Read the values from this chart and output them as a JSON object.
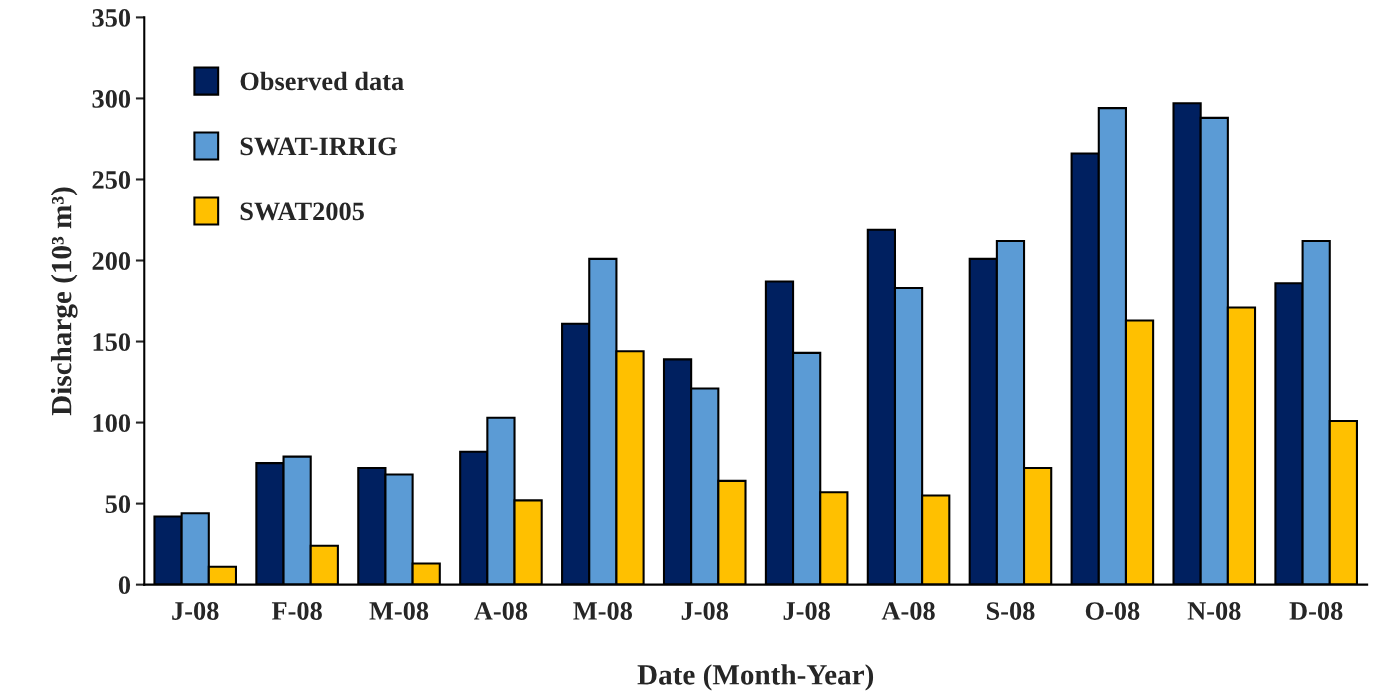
{
  "chart_data": {
    "type": "bar",
    "xlabel": "Date (Month-Year)",
    "ylabel": "Discharge (10³ m³)",
    "categories": [
      "J-08",
      "F-08",
      "M-08",
      "A-08",
      "M-08",
      "J-08",
      "J-08",
      "A-08",
      "S-08",
      "O-08",
      "N-08",
      "D-08"
    ],
    "series": [
      {
        "name": "Observed data",
        "color": "#002060",
        "values": [
          42,
          75,
          72,
          82,
          161,
          139,
          187,
          219,
          201,
          266,
          297,
          186
        ]
      },
      {
        "name": "SWAT-IRRIG",
        "color": "#5b9bd5",
        "values": [
          44,
          79,
          68,
          103,
          201,
          121,
          143,
          183,
          212,
          294,
          288,
          212
        ]
      },
      {
        "name": "SWAT2005",
        "color": "#ffc000",
        "values": [
          11,
          24,
          13,
          52,
          144,
          64,
          57,
          55,
          72,
          163,
          171,
          101
        ]
      }
    ],
    "ylim": [
      0,
      350
    ],
    "yticks": [
      0,
      50,
      100,
      150,
      200,
      250,
      300,
      350
    ],
    "grid": false,
    "legend": "top left"
  }
}
